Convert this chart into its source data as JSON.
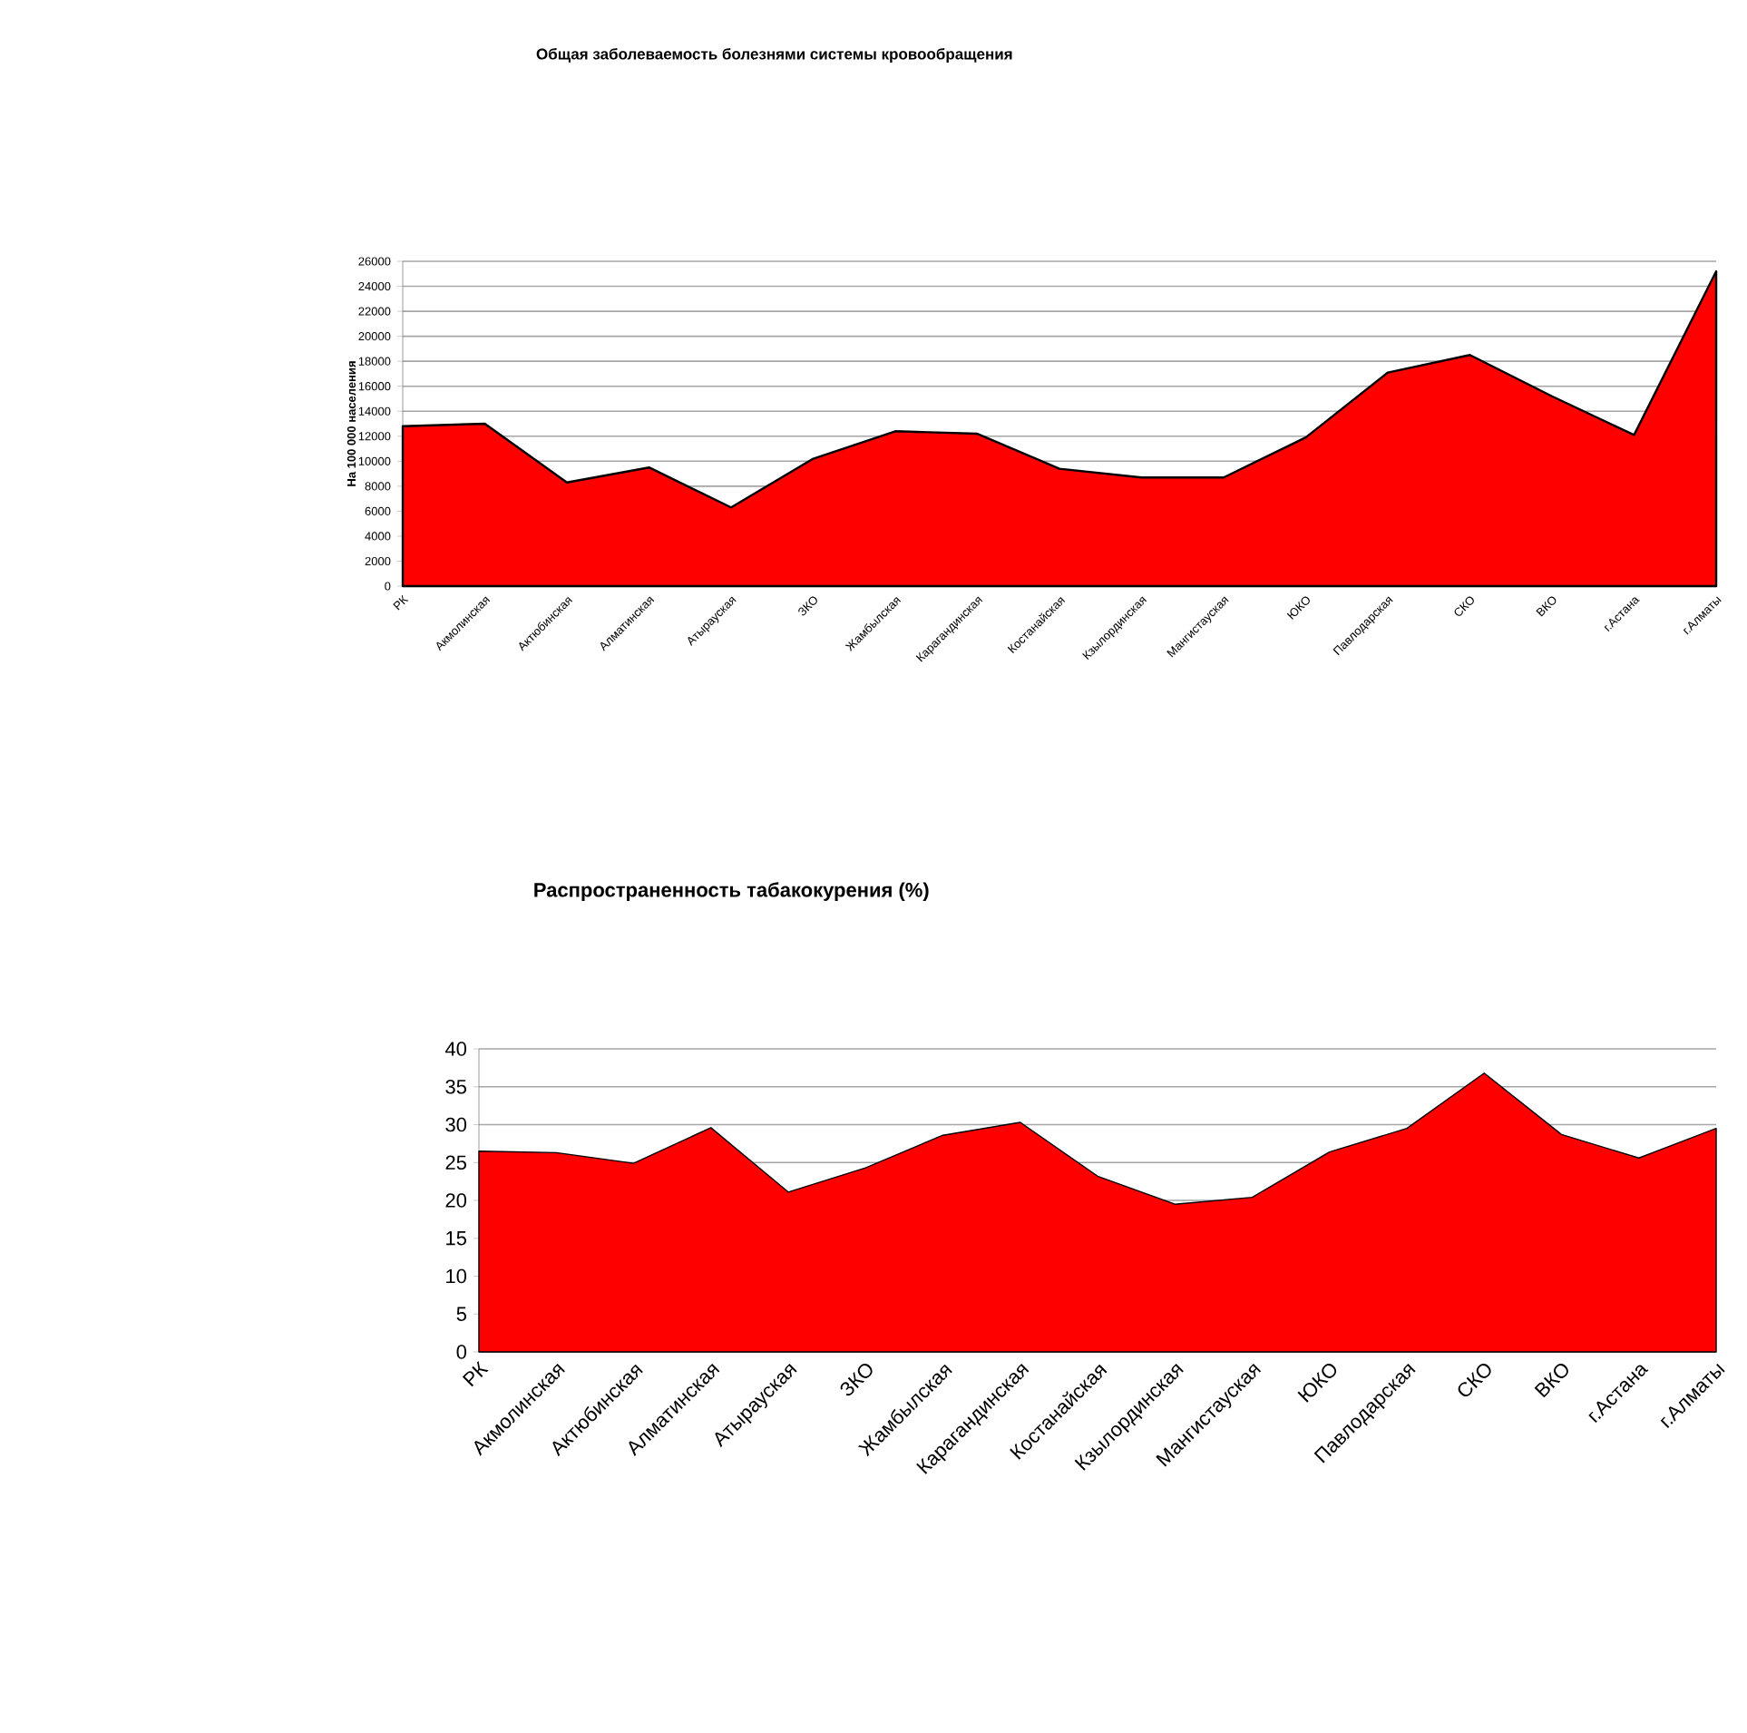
{
  "chart_data": [
    {
      "type": "area",
      "title": "Общая заболеваемость  болезнями системы кровообращения",
      "ylabel": "На 100 000 населения",
      "categories": [
        "РК",
        "Акмолинская",
        "Актюбинская",
        "Алматинская",
        "Атырауская",
        "ЗКО",
        "Жамбылская",
        "Карагандинская",
        "Костанайская",
        "Кзылординская",
        "Мангистауская",
        "ЮКО",
        "Павлодарская",
        "СКО",
        "ВКО",
        "г.Астана",
        "г.Алматы"
      ],
      "values": [
        12800,
        13000,
        8300,
        9500,
        6300,
        10200,
        12400,
        12200,
        9400,
        8700,
        8700,
        11900,
        17100,
        18500,
        15200,
        12100,
        25200
      ],
      "color": "#ff0000",
      "ylim": [
        0,
        26000
      ],
      "yticks": [
        0,
        2000,
        4000,
        6000,
        8000,
        10000,
        12000,
        14000,
        16000,
        18000,
        20000,
        22000,
        24000,
        26000
      ],
      "grid": "y"
    },
    {
      "type": "area",
      "title": "Распространенность табакокурения (%)",
      "categories": [
        "РК",
        "Акмолинская",
        "Актюбинская",
        "Алматинская",
        "Атырауская",
        "ЗКО",
        "Жамбылская",
        "Карагандинская",
        "Костанайская",
        "Кзылординская",
        "Мангистауская",
        "ЮКО",
        "Павлодарская",
        "СКО",
        "ВКО",
        "г.Астана",
        "г.Алматы"
      ],
      "values": [
        26.5,
        26.3,
        24.9,
        29.6,
        21.1,
        24.3,
        28.6,
        30.3,
        23.2,
        19.5,
        20.4,
        26.4,
        29.5,
        36.8,
        28.7,
        25.6,
        29.5
      ],
      "color": "#ff0000",
      "ylim": [
        0,
        40
      ],
      "yticks": [
        0,
        5,
        10,
        15,
        20,
        25,
        30,
        35,
        40
      ],
      "grid": "y"
    }
  ]
}
